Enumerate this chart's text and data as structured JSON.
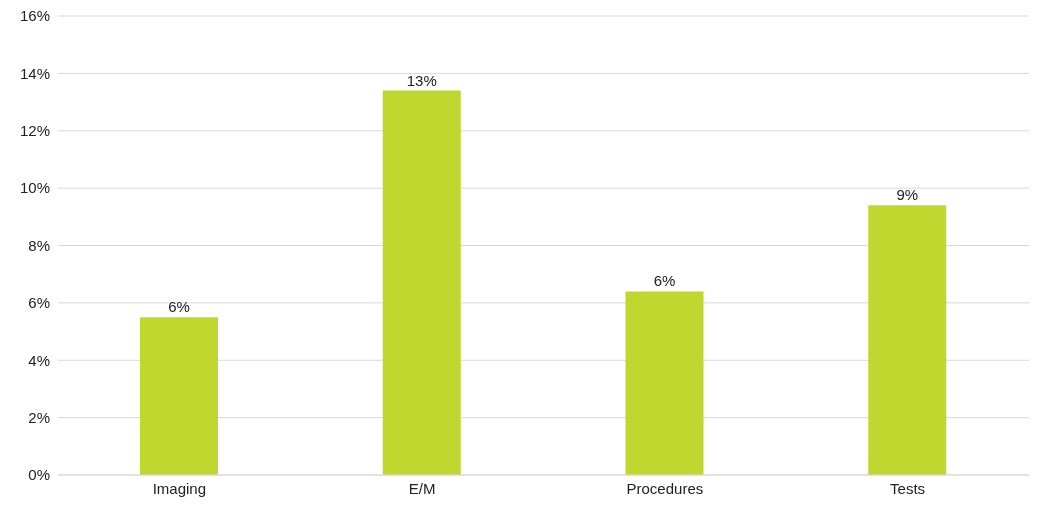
{
  "chart_data": {
    "type": "bar",
    "categories": [
      "Imaging",
      "E/M",
      "Procedures",
      "Tests"
    ],
    "values": [
      5.5,
      13.4,
      6.4,
      9.4
    ],
    "value_labels": [
      "6%",
      "13%",
      "6%",
      "9%"
    ],
    "color": "#c0d72f",
    "ylim": [
      0,
      16
    ],
    "yticks": [
      {
        "value": 0,
        "label": "0%"
      },
      {
        "value": 2,
        "label": "2%"
      },
      {
        "value": 4,
        "label": "4%"
      },
      {
        "value": 6,
        "label": "6%"
      },
      {
        "value": 8,
        "label": "8%"
      },
      {
        "value": 10,
        "label": "10%"
      },
      {
        "value": 12,
        "label": "12%"
      },
      {
        "value": 14,
        "label": "14%"
      },
      {
        "value": 16,
        "label": "16%"
      }
    ],
    "grid": "y"
  }
}
